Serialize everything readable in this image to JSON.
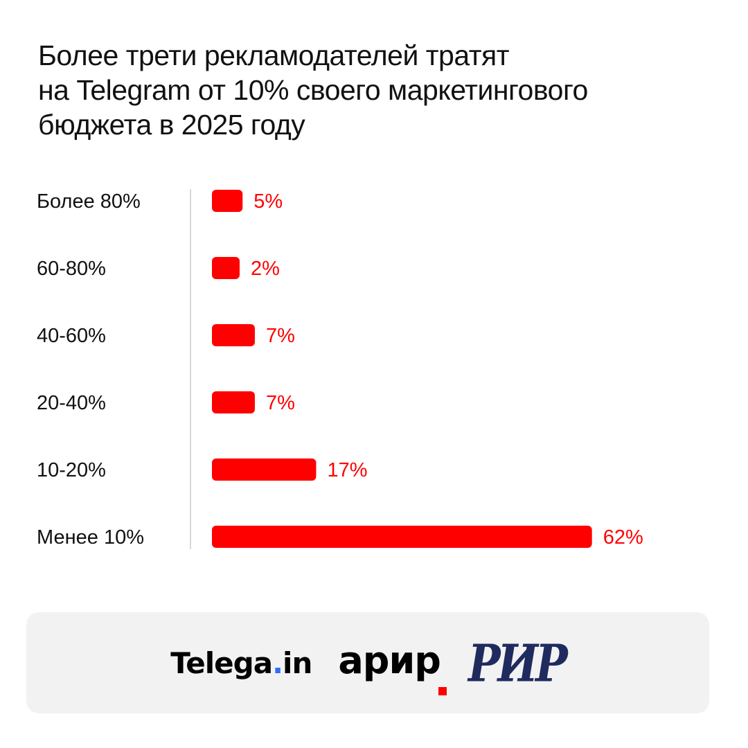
{
  "title_lines": [
    "Более трети рекламодателей тратят",
    "на Telegram от 10% своего маркетингового",
    "бюджета в 2025 году"
  ],
  "chart_data": {
    "type": "bar",
    "orientation": "horizontal",
    "categories": [
      "Более 80%",
      "60-80%",
      "40-60%",
      "20-40%",
      "10-20%",
      "Менее 10%"
    ],
    "values": [
      5,
      2,
      7,
      7,
      17,
      62
    ],
    "value_labels": [
      "5%",
      "2%",
      "7%",
      "7%",
      "17%",
      "62%"
    ],
    "bar_color": "#ff0000",
    "grid": false,
    "legend": "none"
  },
  "logos": {
    "telega_text": "Telega",
    "telega_dot": ".",
    "telega_suffix": "in",
    "arir": "арир",
    "rir": "РИР"
  },
  "colors": {
    "accent": "#ff0000",
    "footer_bg": "#f2f2f2",
    "telega_dot": "#2f6bff",
    "rir": "#1f2b5e"
  }
}
